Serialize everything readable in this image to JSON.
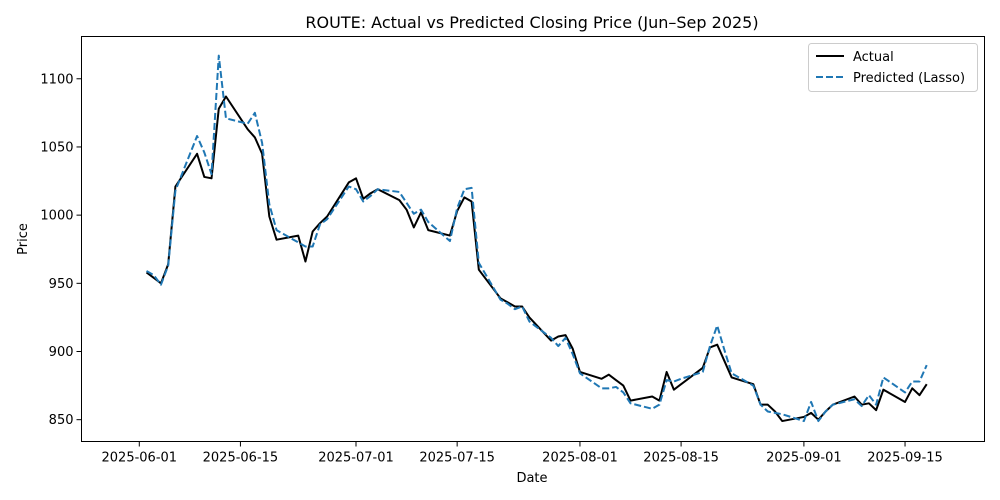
{
  "chart_data": {
    "type": "line",
    "title": "ROUTE: Actual vs Predicted Closing Price (Jun–Sep 2025)",
    "xlabel": "Date",
    "ylabel": "Price",
    "xlim": [
      "2025-05-24",
      "2025-09-26"
    ],
    "ylim": [
      834,
      1131
    ],
    "xticks": [
      "2025-06-01",
      "2025-06-15",
      "2025-07-01",
      "2025-07-15",
      "2025-08-01",
      "2025-08-15",
      "2025-09-01",
      "2025-09-15"
    ],
    "yticks": [
      850,
      900,
      950,
      1000,
      1050,
      1100
    ],
    "legend_position": "top-right",
    "grid": false,
    "series": [
      {
        "name": "Actual",
        "color": "#000000",
        "style": "solid",
        "points": [
          [
            "2025-06-02",
            958
          ],
          [
            "2025-06-03",
            954
          ],
          [
            "2025-06-04",
            950
          ],
          [
            "2025-06-05",
            964
          ],
          [
            "2025-06-06",
            1021
          ],
          [
            "2025-06-09",
            1045
          ],
          [
            "2025-06-10",
            1028
          ],
          [
            "2025-06-11",
            1027
          ],
          [
            "2025-06-12",
            1078
          ],
          [
            "2025-06-13",
            1087
          ],
          [
            "2025-06-16",
            1063
          ],
          [
            "2025-06-17",
            1057
          ],
          [
            "2025-06-18",
            1045
          ],
          [
            "2025-06-19",
            999
          ],
          [
            "2025-06-20",
            982
          ],
          [
            "2025-06-23",
            985
          ],
          [
            "2025-06-24",
            966
          ],
          [
            "2025-06-25",
            988
          ],
          [
            "2025-06-26",
            994
          ],
          [
            "2025-06-27",
            999
          ],
          [
            "2025-06-30",
            1024
          ],
          [
            "2025-07-01",
            1027
          ],
          [
            "2025-07-02",
            1012
          ],
          [
            "2025-07-03",
            1016
          ],
          [
            "2025-07-04",
            1019
          ],
          [
            "2025-07-07",
            1011
          ],
          [
            "2025-07-08",
            1004
          ],
          [
            "2025-07-09",
            991
          ],
          [
            "2025-07-10",
            1002
          ],
          [
            "2025-07-11",
            989
          ],
          [
            "2025-07-14",
            985
          ],
          [
            "2025-07-15",
            1003
          ],
          [
            "2025-07-16",
            1013
          ],
          [
            "2025-07-17",
            1010
          ],
          [
            "2025-07-18",
            960
          ],
          [
            "2025-07-21",
            939
          ],
          [
            "2025-07-22",
            936
          ],
          [
            "2025-07-23",
            933
          ],
          [
            "2025-07-24",
            933
          ],
          [
            "2025-07-25",
            925
          ],
          [
            "2025-07-28",
            908
          ],
          [
            "2025-07-29",
            911
          ],
          [
            "2025-07-30",
            912
          ],
          [
            "2025-07-31",
            902
          ],
          [
            "2025-08-01",
            885
          ],
          [
            "2025-08-04",
            880
          ],
          [
            "2025-08-05",
            883
          ],
          [
            "2025-08-06",
            879
          ],
          [
            "2025-08-07",
            875
          ],
          [
            "2025-08-08",
            864
          ],
          [
            "2025-08-11",
            867
          ],
          [
            "2025-08-12",
            864
          ],
          [
            "2025-08-13",
            885
          ],
          [
            "2025-08-14",
            872
          ],
          [
            "2025-08-15",
            876
          ],
          [
            "2025-08-18",
            888
          ],
          [
            "2025-08-19",
            903
          ],
          [
            "2025-08-20",
            905
          ],
          [
            "2025-08-21",
            893
          ],
          [
            "2025-08-22",
            881
          ],
          [
            "2025-08-25",
            876
          ],
          [
            "2025-08-26",
            861
          ],
          [
            "2025-08-27",
            861
          ],
          [
            "2025-08-28",
            856
          ],
          [
            "2025-08-29",
            849
          ],
          [
            "2025-09-01",
            852
          ],
          [
            "2025-09-02",
            855
          ],
          [
            "2025-09-03",
            850
          ],
          [
            "2025-09-04",
            856
          ],
          [
            "2025-09-05",
            861
          ],
          [
            "2025-09-08",
            867
          ],
          [
            "2025-09-09",
            861
          ],
          [
            "2025-09-10",
            862
          ],
          [
            "2025-09-11",
            857
          ],
          [
            "2025-09-12",
            872
          ],
          [
            "2025-09-15",
            863
          ],
          [
            "2025-09-16",
            873
          ],
          [
            "2025-09-17",
            868
          ],
          [
            "2025-09-18",
            876
          ]
        ]
      },
      {
        "name": "Predicted (Lasso)",
        "color": "#1f77b4",
        "style": "dashed",
        "points": [
          [
            "2025-06-02",
            959
          ],
          [
            "2025-06-03",
            956
          ],
          [
            "2025-06-04",
            949
          ],
          [
            "2025-06-05",
            963
          ],
          [
            "2025-06-06",
            1018
          ],
          [
            "2025-06-09",
            1058
          ],
          [
            "2025-06-10",
            1046
          ],
          [
            "2025-06-11",
            1030
          ],
          [
            "2025-06-12",
            1117
          ],
          [
            "2025-06-13",
            1071
          ],
          [
            "2025-06-16",
            1067
          ],
          [
            "2025-06-17",
            1075
          ],
          [
            "2025-06-18",
            1053
          ],
          [
            "2025-06-19",
            1008
          ],
          [
            "2025-06-20",
            989
          ],
          [
            "2025-06-23",
            980
          ],
          [
            "2025-06-24",
            977
          ],
          [
            "2025-06-25",
            977
          ],
          [
            "2025-06-26",
            993
          ],
          [
            "2025-06-27",
            997
          ],
          [
            "2025-06-30",
            1021
          ],
          [
            "2025-07-01",
            1019
          ],
          [
            "2025-07-02",
            1010
          ],
          [
            "2025-07-03",
            1014
          ],
          [
            "2025-07-04",
            1019
          ],
          [
            "2025-07-07",
            1017
          ],
          [
            "2025-07-08",
            1009
          ],
          [
            "2025-07-09",
            1001
          ],
          [
            "2025-07-10",
            1004
          ],
          [
            "2025-07-11",
            995
          ],
          [
            "2025-07-14",
            981
          ],
          [
            "2025-07-15",
            1005
          ],
          [
            "2025-07-16",
            1019
          ],
          [
            "2025-07-17",
            1020
          ],
          [
            "2025-07-18",
            965
          ],
          [
            "2025-07-21",
            938
          ],
          [
            "2025-07-22",
            935
          ],
          [
            "2025-07-23",
            931
          ],
          [
            "2025-07-24",
            933
          ],
          [
            "2025-07-25",
            922
          ],
          [
            "2025-07-28",
            910
          ],
          [
            "2025-07-29",
            904
          ],
          [
            "2025-07-30",
            910
          ],
          [
            "2025-07-31",
            898
          ],
          [
            "2025-08-01",
            884
          ],
          [
            "2025-08-04",
            873
          ],
          [
            "2025-08-05",
            873
          ],
          [
            "2025-08-06",
            874
          ],
          [
            "2025-08-07",
            870
          ],
          [
            "2025-08-08",
            862
          ],
          [
            "2025-08-11",
            858
          ],
          [
            "2025-08-12",
            861
          ],
          [
            "2025-08-13",
            879
          ],
          [
            "2025-08-14",
            878
          ],
          [
            "2025-08-15",
            880
          ],
          [
            "2025-08-18",
            885
          ],
          [
            "2025-08-19",
            904
          ],
          [
            "2025-08-20",
            919
          ],
          [
            "2025-08-21",
            901
          ],
          [
            "2025-08-22",
            884
          ],
          [
            "2025-08-25",
            875
          ],
          [
            "2025-08-26",
            861
          ],
          [
            "2025-08-27",
            856
          ],
          [
            "2025-08-28",
            855
          ],
          [
            "2025-08-29",
            854
          ],
          [
            "2025-09-01",
            849
          ],
          [
            "2025-09-02",
            863
          ],
          [
            "2025-09-03",
            849
          ],
          [
            "2025-09-04",
            856
          ],
          [
            "2025-09-05",
            861
          ],
          [
            "2025-09-08",
            865
          ],
          [
            "2025-09-09",
            860
          ],
          [
            "2025-09-10",
            868
          ],
          [
            "2025-09-11",
            861
          ],
          [
            "2025-09-12",
            881
          ],
          [
            "2025-09-15",
            870
          ],
          [
            "2025-09-16",
            878
          ],
          [
            "2025-09-17",
            878
          ],
          [
            "2025-09-18",
            890
          ]
        ]
      }
    ]
  }
}
